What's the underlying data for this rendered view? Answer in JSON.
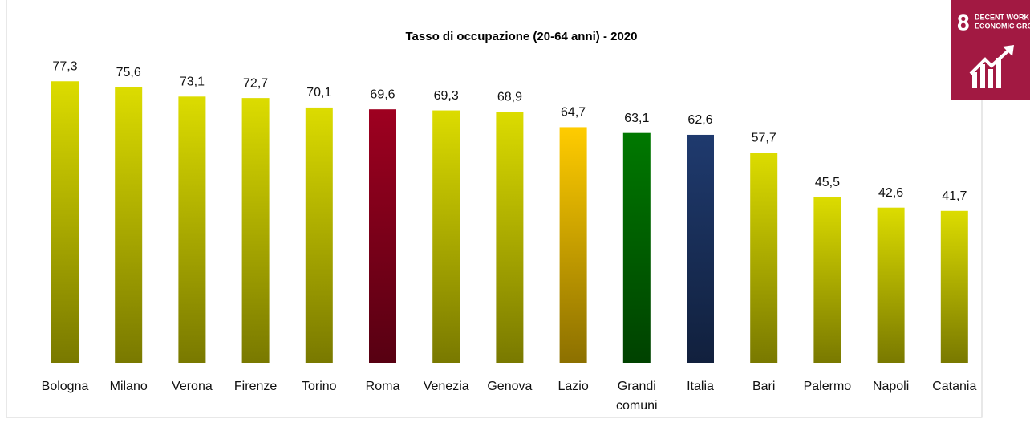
{
  "chart_data": {
    "type": "bar",
    "title": "Tasso di occupazione (20-64 anni) - 2020",
    "categories": [
      "Bologna",
      "Milano",
      "Verona",
      "Firenze",
      "Torino",
      "Roma",
      "Venezia",
      "Genova",
      "Lazio",
      "Grandi comuni",
      "Italia",
      "Bari",
      "Palermo",
      "Napoli",
      "Catania"
    ],
    "values": [
      77.3,
      75.6,
      73.1,
      72.7,
      70.1,
      69.6,
      69.3,
      68.9,
      64.7,
      63.1,
      62.6,
      57.7,
      45.5,
      42.6,
      41.7
    ],
    "value_labels": [
      "77,3",
      "75,6",
      "73,1",
      "72,7",
      "70,1",
      "69,6",
      "69,3",
      "68,9",
      "64,7",
      "63,1",
      "62,6",
      "57,7",
      "45,5",
      "42,6",
      "41,7"
    ],
    "colors": [
      "#dcdc00",
      "#dcdc00",
      "#dcdc00",
      "#dcdc00",
      "#dcdc00",
      "#9e0020",
      "#dcdc00",
      "#dcdc00",
      "#ffcc00",
      "#007800",
      "#1f3a6e",
      "#dcdc00",
      "#dcdc00",
      "#dcdc00",
      "#dcdc00"
    ],
    "ylim": [
      0,
      80
    ],
    "badge": {
      "number": "8",
      "lines": [
        "DECENT WORK AND",
        "ECONOMIC GROWTH"
      ],
      "color": "#a21942"
    }
  }
}
